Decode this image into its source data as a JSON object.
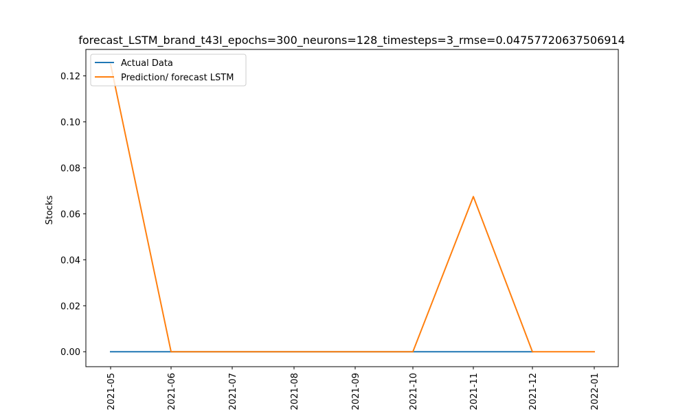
{
  "chart_data": {
    "type": "line",
    "title": "forecast_LSTM_brand_t43I_epochs=300_neurons=128_timesteps=3_rmse=0.04757720637506914",
    "xlabel": "",
    "ylabel": "Stocks",
    "x": [
      "2021-05",
      "2021-06",
      "2021-07",
      "2021-08",
      "2021-09",
      "2021-10",
      "2021-11",
      "2021-12",
      "2022-01"
    ],
    "x_tick_labels": [
      "2021-05",
      "2021-06",
      "2021-07",
      "2021-08",
      "2021-09",
      "2021-10",
      "2021-11",
      "2021-12",
      "2022-01"
    ],
    "y_ticks": [
      0.0,
      0.02,
      0.04,
      0.06,
      0.08,
      0.1,
      0.12
    ],
    "y_tick_labels": [
      "0.00",
      "0.02",
      "0.04",
      "0.06",
      "0.08",
      "0.10",
      "0.12"
    ],
    "ylim": [
      -0.0065,
      0.1315
    ],
    "grid": false,
    "legend_position": "upper-left",
    "series": [
      {
        "name": "Actual Data",
        "color": "#1f77b4",
        "x": [
          "2021-05",
          "2021-06",
          "2021-07",
          "2021-08",
          "2021-09",
          "2021-10",
          "2021-11",
          "2021-12"
        ],
        "values": [
          0,
          0,
          0,
          0,
          0,
          0,
          0,
          0
        ]
      },
      {
        "name": "Prediction/ forecast LSTM",
        "color": "#ff7f0e",
        "x": [
          "2021-05",
          "2021-06",
          "2021-07",
          "2021-08",
          "2021-09",
          "2021-10",
          "2021-11",
          "2021-12",
          "2022-01"
        ],
        "values": [
          0.125,
          0,
          0,
          0,
          0,
          0,
          0.0675,
          0,
          0
        ]
      }
    ]
  }
}
